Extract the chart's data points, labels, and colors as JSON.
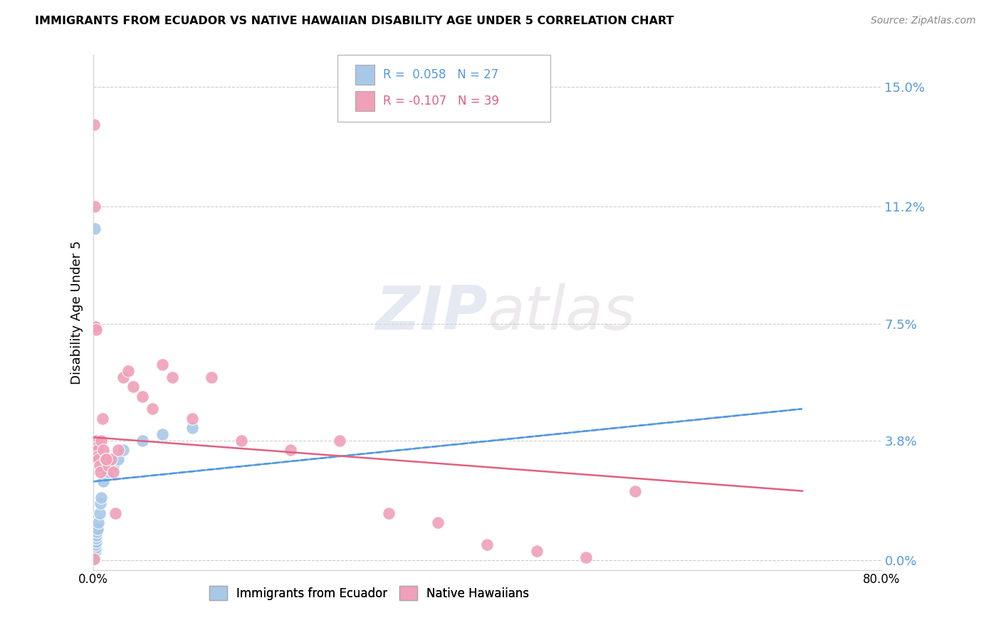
{
  "title": "IMMIGRANTS FROM ECUADOR VS NATIVE HAWAIIAN DISABILITY AGE UNDER 5 CORRELATION CHART",
  "source": "Source: ZipAtlas.com",
  "ylabel": "Disability Age Under 5",
  "y_tick_values": [
    0.0,
    3.8,
    7.5,
    11.2,
    15.0
  ],
  "xlim": [
    0.0,
    80.0
  ],
  "ylim": [
    -0.3,
    16.0
  ],
  "color_blue": "#a8c8e8",
  "color_pink": "#f0a0b8",
  "line_color_blue": "#5599dd",
  "line_color_pink": "#e06080",
  "watermark_zip": "ZIP",
  "watermark_atlas": "atlas",
  "blue_dots": [
    [
      0.05,
      0.05
    ],
    [
      0.08,
      0.08
    ],
    [
      0.1,
      0.1
    ],
    [
      0.12,
      0.15
    ],
    [
      0.15,
      0.2
    ],
    [
      0.18,
      0.3
    ],
    [
      0.2,
      0.4
    ],
    [
      0.22,
      0.5
    ],
    [
      0.25,
      0.6
    ],
    [
      0.28,
      0.7
    ],
    [
      0.3,
      0.8
    ],
    [
      0.35,
      0.9
    ],
    [
      0.4,
      1.0
    ],
    [
      0.5,
      1.2
    ],
    [
      0.6,
      1.5
    ],
    [
      0.7,
      1.8
    ],
    [
      0.8,
      2.0
    ],
    [
      1.0,
      2.5
    ],
    [
      1.5,
      2.8
    ],
    [
      2.0,
      3.0
    ],
    [
      2.5,
      3.2
    ],
    [
      3.0,
      3.5
    ],
    [
      0.15,
      10.5
    ],
    [
      5.0,
      3.8
    ],
    [
      7.0,
      4.0
    ],
    [
      10.0,
      4.2
    ],
    [
      0.05,
      0.02
    ]
  ],
  "pink_dots": [
    [
      0.05,
      13.8
    ],
    [
      0.15,
      11.2
    ],
    [
      0.2,
      7.4
    ],
    [
      0.25,
      7.3
    ],
    [
      0.3,
      3.8
    ],
    [
      0.35,
      3.6
    ],
    [
      0.4,
      3.5
    ],
    [
      0.45,
      3.3
    ],
    [
      0.5,
      3.2
    ],
    [
      0.6,
      3.0
    ],
    [
      0.7,
      2.8
    ],
    [
      0.8,
      3.8
    ],
    [
      1.0,
      3.5
    ],
    [
      1.2,
      3.2
    ],
    [
      1.5,
      3.0
    ],
    [
      1.8,
      3.2
    ],
    [
      2.0,
      2.8
    ],
    [
      2.5,
      3.5
    ],
    [
      3.0,
      5.8
    ],
    [
      3.5,
      6.0
    ],
    [
      4.0,
      5.5
    ],
    [
      5.0,
      5.2
    ],
    [
      6.0,
      4.8
    ],
    [
      7.0,
      6.2
    ],
    [
      8.0,
      5.8
    ],
    [
      10.0,
      4.5
    ],
    [
      12.0,
      5.8
    ],
    [
      15.0,
      3.8
    ],
    [
      20.0,
      3.5
    ],
    [
      25.0,
      3.8
    ],
    [
      30.0,
      1.5
    ],
    [
      35.0,
      1.2
    ],
    [
      40.0,
      0.5
    ],
    [
      45.0,
      0.3
    ],
    [
      50.0,
      0.1
    ],
    [
      55.0,
      2.2
    ],
    [
      0.9,
      4.5
    ],
    [
      1.3,
      3.2
    ],
    [
      2.2,
      1.5
    ],
    [
      0.05,
      0.05
    ]
  ],
  "blue_line": {
    "x_start": 0.0,
    "x_end": 72.0,
    "y_start": 2.5,
    "y_end": 4.8
  },
  "pink_line": {
    "x_start": 0.0,
    "x_end": 72.0,
    "y_start": 3.9,
    "y_end": 2.2
  }
}
